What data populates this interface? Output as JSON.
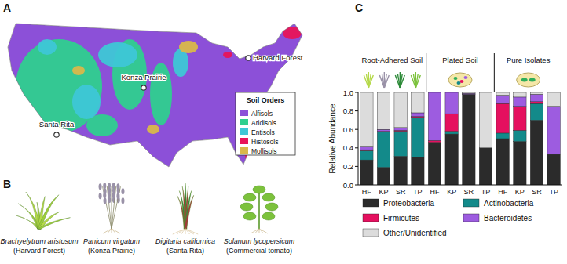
{
  "panel_labels": [
    "A",
    "B",
    "C"
  ],
  "map": {
    "legend_title": "Soil Orders",
    "soil_orders": [
      {
        "name": "Alfisols",
        "color": "#8c50d8"
      },
      {
        "name": "Aridisols",
        "color": "#2fcf8f"
      },
      {
        "name": "Entisols",
        "color": "#3ec7d6"
      },
      {
        "name": "Histosols",
        "color": "#e8145a"
      },
      {
        "name": "Mollisols",
        "color": "#d9b84a"
      }
    ],
    "sites": [
      "Harvard Forest",
      "Konza Prairie",
      "Santa Rita"
    ]
  },
  "plants": [
    {
      "species": "Brachyelytrum aristosum",
      "source": "(Harvard Forest)"
    },
    {
      "species": "Panicum virgatum",
      "source": "(Konza Prairie)"
    },
    {
      "species": "Digitaria californica",
      "source": "(Santa Rita)"
    },
    {
      "species": "Solanum lycopersicum",
      "source": "(Commercial tomato)"
    }
  ],
  "chart_data": {
    "type": "bar",
    "stacked": true,
    "legend": "bottom",
    "ylabel": "Relative Abundance",
    "groups": [
      "Root-Adhered Soil",
      "Plated Soil",
      "Pure Isolates"
    ],
    "categories": [
      "HF",
      "KP",
      "SR",
      "TP",
      "HF",
      "KP",
      "SR",
      "TP",
      "HF",
      "KP",
      "SR",
      "TP"
    ],
    "ylim": [
      0,
      1
    ],
    "yticks": [
      {
        "value": 0,
        "label": "0.0"
      },
      {
        "value": 0.2,
        "label": "0.2"
      },
      {
        "value": 0.4,
        "label": "0.4"
      },
      {
        "value": 0.6,
        "label": "0.6"
      },
      {
        "value": 0.8,
        "label": "0.8"
      },
      {
        "value": 1,
        "label": "1.0"
      }
    ],
    "series": [
      {
        "name": "Proteobacteria",
        "color": "#2b2b2b",
        "values": [
          0.27,
          0.19,
          0.31,
          0.3,
          0.46,
          0.55,
          0.98,
          0.4,
          0.5,
          0.47,
          0.7,
          0.33
        ]
      },
      {
        "name": "Actinobacteria",
        "color": "#138a8a",
        "values": [
          0.1,
          0.38,
          0.27,
          0.43,
          0,
          0.03,
          0,
          0,
          0.06,
          0.12,
          0.18,
          0
        ]
      },
      {
        "name": "Firmicutes",
        "color": "#e5105f",
        "values": [
          0.01,
          0.01,
          0.01,
          0.01,
          0.02,
          0.19,
          0,
          0,
          0.32,
          0.26,
          0.02,
          0
        ]
      },
      {
        "name": "Bacteroidetes",
        "color": "#9d5ce0",
        "values": [
          0.03,
          0.02,
          0.03,
          0.04,
          0.52,
          0.23,
          0.01,
          0,
          0.09,
          0.1,
          0.08,
          0.52
        ]
      },
      {
        "name": "Other/Unidentified",
        "color": "#dcdcdc",
        "values": [
          0.59,
          0.4,
          0.38,
          0.22,
          0,
          0,
          0.01,
          0.6,
          0.03,
          0.05,
          0.02,
          0.15
        ]
      }
    ]
  }
}
